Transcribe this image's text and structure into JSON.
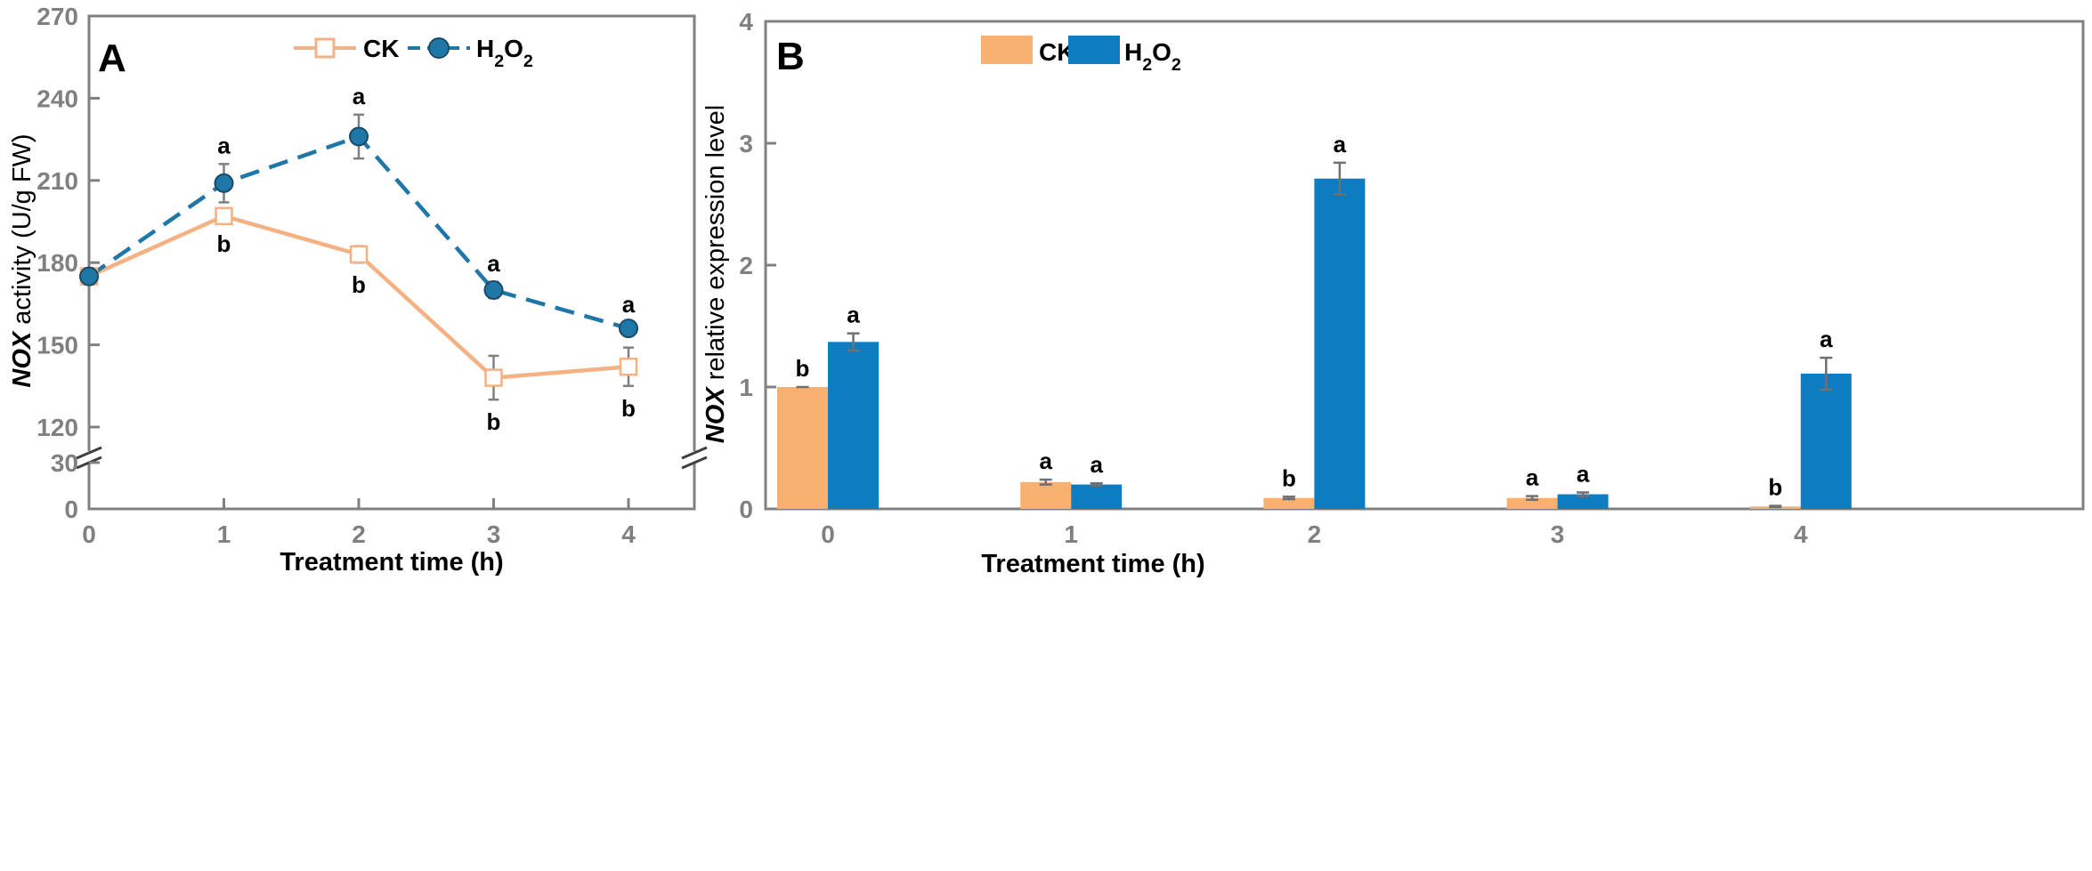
{
  "chart_data": [
    {
      "panel": "A",
      "type": "line",
      "xlabel_italic": "",
      "xlabel": "Treatment time (h)",
      "ylabel_italic": "NOX",
      "ylabel": " activity (U/g FW)",
      "x": [
        0,
        1,
        2,
        3,
        4
      ],
      "y_ticks_upper": [
        "120",
        "150",
        "180",
        "210",
        "240",
        "270"
      ],
      "y_ticks_lower": [
        "0",
        "30"
      ],
      "ylim": [
        0,
        270
      ],
      "axis_break": [
        30,
        120
      ],
      "series": [
        {
          "name": "CK",
          "color": "#F4B183",
          "marker": "open-square",
          "line": "solid",
          "values": [
            175,
            197,
            183,
            138,
            142
          ],
          "errors": [
            0,
            2,
            3,
            8,
            7
          ],
          "sig": [
            "",
            "b",
            "b",
            "b",
            "b"
          ]
        },
        {
          "name": "H2O2",
          "color": "#1F77A8",
          "marker": "filled-circle",
          "line": "dashed",
          "values": [
            175,
            209,
            226,
            170,
            156
          ],
          "errors": [
            3,
            7,
            8,
            3,
            2
          ],
          "sig": [
            "",
            "a",
            "a",
            "a",
            "a"
          ]
        }
      ],
      "legend": "top-center",
      "grid": false
    },
    {
      "panel": "B",
      "type": "bar",
      "xlabel": "Treatment time (h)",
      "ylabel_italic": "NOX",
      "ylabel": " relative expression level",
      "categories": [
        "0",
        "1",
        "2",
        "3",
        "4"
      ],
      "y_ticks": [
        "0",
        "1",
        "2",
        "3",
        "4"
      ],
      "ylim": [
        0,
        4
      ],
      "series": [
        {
          "name": "CK",
          "color": "#F8B070",
          "values": [
            1.0,
            0.22,
            0.09,
            0.09,
            0.02
          ],
          "errors": [
            0.0,
            0.02,
            0.01,
            0.015,
            0.005
          ],
          "sig": [
            "b",
            "a",
            "b",
            "a",
            "b"
          ]
        },
        {
          "name": "H2O2",
          "color": "#0E7CC1",
          "values": [
            1.37,
            0.2,
            2.71,
            0.12,
            1.11
          ],
          "errors": [
            0.07,
            0.01,
            0.13,
            0.015,
            0.13
          ],
          "sig": [
            "a",
            "a",
            "a",
            "a",
            "a"
          ]
        }
      ],
      "legend": "top-center",
      "grid": false
    }
  ]
}
